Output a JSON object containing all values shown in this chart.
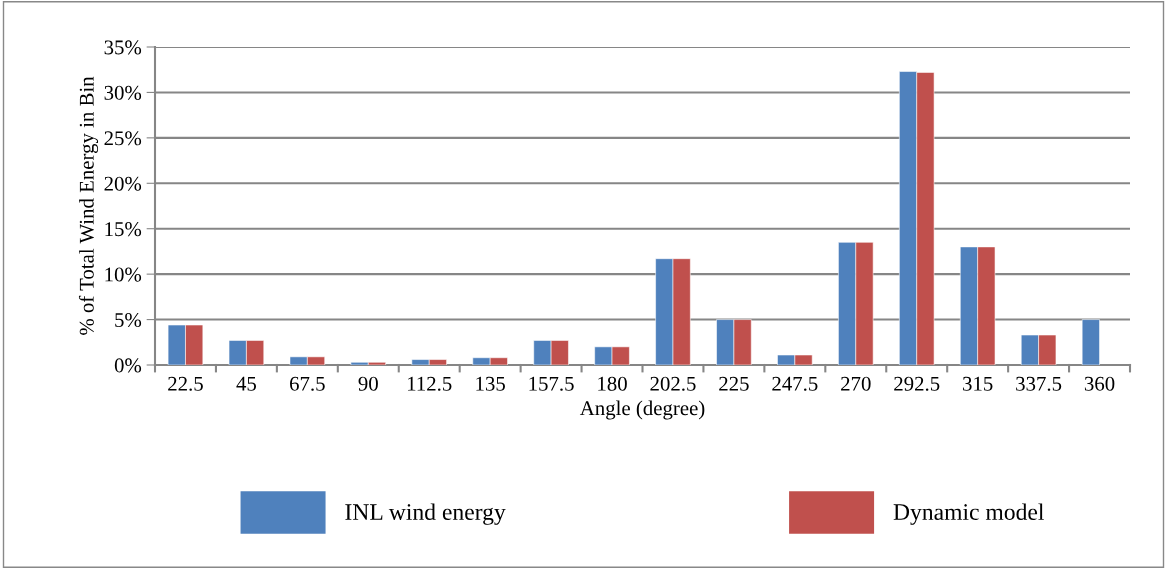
{
  "chart_data": {
    "type": "bar",
    "xlabel": "Angle (degree)",
    "ylabel": "% of Total Wind Energy in Bin",
    "categories": [
      "22.5",
      "45",
      "67.5",
      "90",
      "112.5",
      "135",
      "157.5",
      "180",
      "202.5",
      "225",
      "247.5",
      "270",
      "292.5",
      "315",
      "337.5",
      "360"
    ],
    "series": [
      {
        "name": "INL wind energy",
        "color": "#4f81bd",
        "values": [
          4.4,
          2.7,
          0.9,
          0.3,
          0.6,
          0.8,
          2.7,
          2.0,
          11.7,
          5.0,
          1.1,
          13.5,
          32.3,
          13.0,
          3.3,
          5.0
        ]
      },
      {
        "name": "Dynamic model",
        "color": "#c0504d",
        "values": [
          4.4,
          2.7,
          0.9,
          0.3,
          0.6,
          0.8,
          2.7,
          2.0,
          11.7,
          5.0,
          1.1,
          13.5,
          32.2,
          13.0,
          3.3,
          null
        ]
      }
    ],
    "ylim": [
      0,
      35
    ],
    "yticks": [
      {
        "value": 0,
        "label": "0%"
      },
      {
        "value": 5,
        "label": "5%"
      },
      {
        "value": 10,
        "label": "10%"
      },
      {
        "value": 15,
        "label": "15%"
      },
      {
        "value": 20,
        "label": "20%"
      },
      {
        "value": 25,
        "label": "25%"
      },
      {
        "value": 30,
        "label": "30%"
      },
      {
        "value": 35,
        "label": "35%"
      }
    ],
    "grid": "y",
    "legend": "bottom"
  }
}
